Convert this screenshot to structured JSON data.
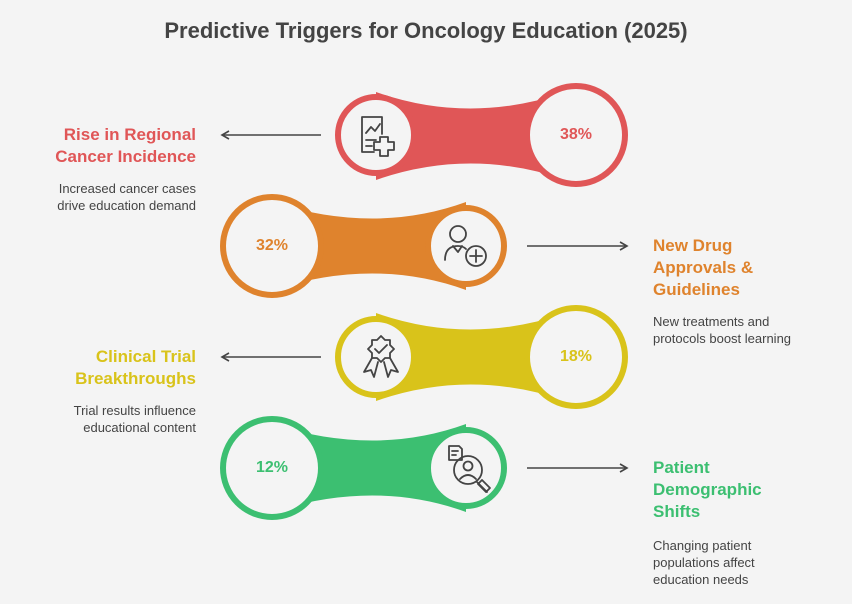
{
  "title": "Predictive Triggers for Oncology Education (2025)",
  "triggers": [
    {
      "label_lines": [
        "Rise in Regional",
        "Cancer Incidence"
      ],
      "percent": "38%",
      "desc_lines": [
        "Increased cancer cases",
        "drive education demand"
      ],
      "color": "#e05657",
      "icon": "document-plus-icon",
      "side": "left"
    },
    {
      "label_lines": [
        "New Drug",
        "Approvals &",
        "Guidelines"
      ],
      "percent": "32%",
      "desc_lines": [
        "New treatments and",
        "protocols boost learning"
      ],
      "color": "#df832d",
      "icon": "doctor-plus-icon",
      "side": "right"
    },
    {
      "label_lines": [
        "Clinical Trial",
        "Breakthroughs"
      ],
      "percent": "18%",
      "desc_lines": [
        "Trial results influence",
        "educational content"
      ],
      "color": "#d9c31a",
      "icon": "award-badge-icon",
      "side": "left"
    },
    {
      "label_lines": [
        "Patient",
        "Demographic",
        "Shifts"
      ],
      "percent": "12%",
      "desc_lines": [
        "Changing patient",
        "populations affect",
        "education needs"
      ],
      "color": "#3cbf71",
      "icon": "patient-profile-icon",
      "side": "right"
    }
  ]
}
